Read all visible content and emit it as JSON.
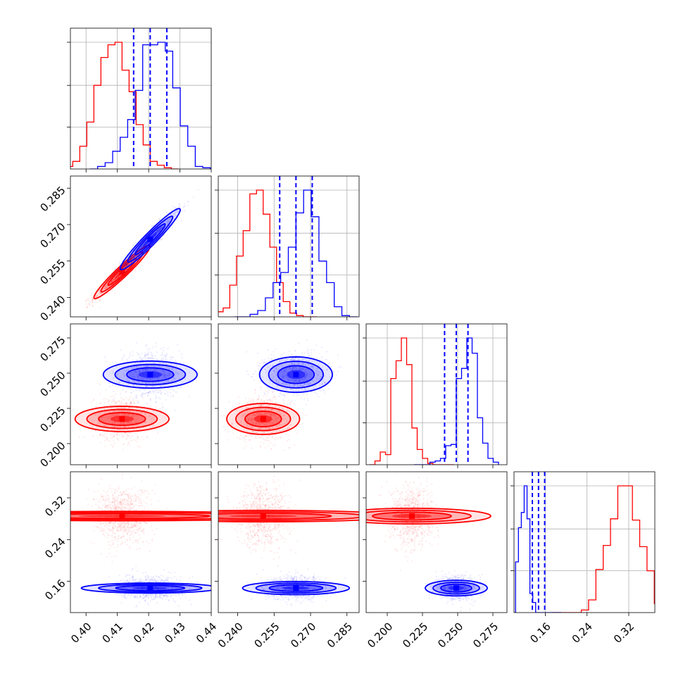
{
  "chart_data": {
    "type": "corner",
    "title": "",
    "grid": true,
    "colors": {
      "red": "#ff0000",
      "blue": "#0000ff"
    },
    "parameters": [
      {
        "range": [
          0.395,
          0.44
        ],
        "ticks": [
          0.4,
          0.41,
          0.42,
          0.43,
          0.44
        ],
        "tick_labels": [
          "0.40",
          "0.41",
          "0.42",
          "0.43",
          "0.44"
        ]
      },
      {
        "range": [
          0.232,
          0.29
        ],
        "ticks": [
          0.24,
          0.255,
          0.27,
          0.285
        ],
        "tick_labels": [
          "0.240",
          "0.255",
          "0.270",
          "0.285"
        ]
      },
      {
        "range": [
          0.185,
          0.285
        ],
        "ticks": [
          0.2,
          0.225,
          0.25,
          0.275
        ],
        "tick_labels": [
          "0.200",
          "0.225",
          "0.250",
          "0.275"
        ]
      },
      {
        "range": [
          0.1,
          0.37
        ],
        "ticks": [
          0.16,
          0.24,
          0.32
        ],
        "tick_labels": [
          "0.16",
          "0.24",
          "0.32"
        ]
      }
    ],
    "series": [
      {
        "color": "red",
        "means": [
          0.4115,
          0.2505,
          0.2175,
          0.285
        ],
        "sigmas": [
          0.0045,
          0.0055,
          0.0075,
          0.028
        ],
        "correlations": {
          "0-1": 0.96,
          "0-2": 0.0,
          "0-3": 0.0,
          "1-2": 0.0,
          "1-3": 0.0,
          "2-3": 0.0
        },
        "histograms": [
          [
            0.02,
            0.06,
            0.18,
            0.37,
            0.66,
            0.88,
            0.98,
            1.0,
            0.78,
            0.61,
            0.35,
            0.19,
            0.06,
            0.03,
            0.01,
            0.0
          ],
          [
            0.02,
            0.04,
            0.07,
            0.25,
            0.48,
            0.68,
            0.97,
            1.0,
            0.81,
            0.55,
            0.27,
            0.12,
            0.03,
            0.01,
            0.0,
            0.0
          ],
          [
            0.0,
            0.03,
            0.1,
            0.08,
            0.68,
            0.82,
            1.0,
            0.79,
            0.29,
            0.12,
            0.05,
            0.01,
            0.0,
            0.0,
            0.0,
            0.0
          ],
          [
            0.0,
            0.0,
            0.0,
            0.0,
            0.02,
            0.1,
            0.34,
            0.53,
            0.74,
            1.0,
            1.0,
            0.73,
            0.52,
            0.33,
            0.07,
            0.04
          ]
        ]
      },
      {
        "color": "blue",
        "means": [
          0.4205,
          0.264,
          0.249,
          0.147
        ],
        "sigmas": [
          0.0048,
          0.0063,
          0.0075,
          0.011
        ],
        "correlations": {
          "0-1": 0.96,
          "0-2": 0.0,
          "0-3": 0.0,
          "1-2": 0.0,
          "1-3": 0.0,
          "2-3": 0.0
        },
        "quantiles": [
          [
            0.4152,
            0.4205,
            0.4258
          ],
          [
            0.2573,
            0.264,
            0.2707
          ],
          [
            0.2407,
            0.249,
            0.2573
          ],
          [
            0.1352,
            0.147,
            0.1588
          ]
        ],
        "histograms": [
          [
            0.0,
            0.02,
            0.05,
            0.14,
            0.25,
            0.39,
            0.62,
            0.98,
            0.98,
            1.0,
            0.93,
            0.64,
            0.34,
            0.18,
            0.02,
            0.01
          ],
          [
            0.0,
            0.0,
            0.02,
            0.05,
            0.15,
            0.27,
            0.35,
            0.55,
            0.82,
            1.0,
            0.79,
            0.44,
            0.27,
            0.08,
            0.01,
            0.0
          ],
          [
            0.0,
            0.0,
            0.0,
            0.02,
            0.03,
            0.05,
            0.15,
            0.16,
            0.68,
            0.76,
            1.0,
            0.88,
            0.37,
            0.17,
            0.05,
            0.02
          ],
          [
            0.4,
            0.67,
            0.79,
            1.0,
            0.74,
            0.15,
            0.08,
            0.0,
            0.0,
            0.0,
            0.0,
            0.0,
            0.0,
            0.0,
            0.0,
            0.0
          ]
        ]
      }
    ]
  }
}
